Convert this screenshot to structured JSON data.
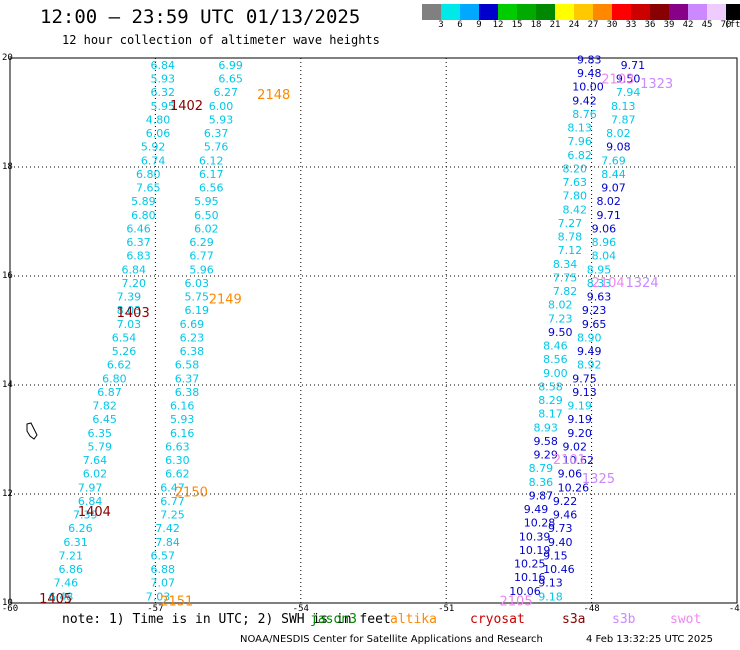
{
  "title": "12:00 – 23:59 UTC 01/13/2025",
  "subtitle": "12 hour collection of altimeter wave heights",
  "scale": {
    "colors": [
      "#808080",
      "#00e8e8",
      "#00a8ff",
      "#0000cc",
      "#00cc00",
      "#00aa00",
      "#008800",
      "#ffff00",
      "#ffc800",
      "#ff8800",
      "#ff0000",
      "#cc0000",
      "#880000",
      "#880088",
      "#cc88ff",
      "#eeccff",
      "#000000"
    ],
    "labels": [
      "3",
      "6",
      "9",
      "12",
      "15",
      "18",
      "21",
      "24",
      "27",
      "30",
      "33",
      "36",
      "39",
      "42",
      "45",
      "70",
      "(ft)"
    ]
  },
  "axes": {
    "x_ticks": [
      "-60",
      "-57",
      "-54",
      "-51",
      "-48",
      "-45"
    ],
    "y_ticks": [
      "20",
      "18",
      "16",
      "14",
      "12",
      "10"
    ]
  },
  "footer": {
    "note": "note: 1) Time is in UTC; 2) SWH is in feet",
    "satellites": [
      {
        "name": "jason3",
        "color": "#008800"
      },
      {
        "name": "altika",
        "color": "#ff8800"
      },
      {
        "name": "cryosat",
        "color": "#cc0000"
      },
      {
        "name": "s3a",
        "color": "#880000"
      },
      {
        "name": "s3b",
        "color": "#cc88ff"
      },
      {
        "name": "swot",
        "color": "#ee88ee"
      }
    ],
    "credit": "NOAA/NESDIS Center for Satellite Applications and Research",
    "timestamp": "4 Feb 13:32:25 UTC 2025"
  },
  "chart_data": {
    "type": "scatter",
    "xlim": [
      -60,
      -45
    ],
    "ylim": [
      10,
      20
    ],
    "grid": true,
    "colors": {
      "c6": "#00c8e8",
      "c9": "#00a8ff",
      "c12": "#0000cc"
    },
    "pass_labels": [
      {
        "text": "1402",
        "x": -56.7,
        "y": 19.05,
        "color": "#880000"
      },
      {
        "text": "2148",
        "x": -54.9,
        "y": 19.25,
        "color": "#ff8800"
      },
      {
        "text": "1403",
        "x": -57.8,
        "y": 15.25,
        "color": "#880000"
      },
      {
        "text": "2149",
        "x": -55.9,
        "y": 15.5,
        "color": "#ff8800"
      },
      {
        "text": "1404",
        "x": -58.6,
        "y": 11.6,
        "color": "#880000"
      },
      {
        "text": "2150",
        "x": -56.6,
        "y": 11.95,
        "color": "#ff8800"
      },
      {
        "text": "1405",
        "x": -59.4,
        "y": 10.0,
        "color": "#880000"
      },
      {
        "text": "2151",
        "x": -56.9,
        "y": 9.95,
        "color": "#ff8800"
      },
      {
        "text": "2103",
        "x": -47.8,
        "y": 19.53,
        "color": "#ee88ee"
      },
      {
        "text": "1323",
        "x": -47.0,
        "y": 19.45,
        "color": "#cc88ff"
      },
      {
        "text": "2104",
        "x": -48.0,
        "y": 15.8,
        "color": "#ee88ee"
      },
      {
        "text": "1324",
        "x": -47.3,
        "y": 15.8,
        "color": "#cc88ff"
      },
      {
        "text": "2101",
        "x": -48.8,
        "y": 12.55,
        "color": "#ee88ee"
      },
      {
        "text": "1325",
        "x": -48.2,
        "y": 12.2,
        "color": "#cc88ff"
      },
      {
        "text": "2105",
        "x": -49.9,
        "y": 9.95,
        "color": "#ee88ee"
      }
    ],
    "tracks": [
      {
        "name": "s3a-left",
        "x": [
          -57.1,
          -57.1,
          -57.1,
          -57.1,
          -57.2,
          -57.2,
          -57.3,
          -57.3,
          -57.4,
          -57.4,
          -57.5,
          -57.5,
          -57.6,
          -57.6,
          -57.6,
          -57.7,
          -57.7,
          -57.8,
          -57.8,
          -57.8,
          -57.9,
          -57.9,
          -58.0,
          -58.1,
          -58.2,
          -58.3,
          -58.3,
          -58.4,
          -58.4,
          -58.5,
          -58.5,
          -58.6,
          -58.6,
          -58.7,
          -58.8,
          -58.9,
          -59.0,
          -59.0,
          -59.1,
          -59.2,
          -59.3,
          -59.4,
          -59.5,
          -59.6
        ],
        "y": [
          19.8,
          19.55,
          19.3,
          19.05,
          18.8,
          18.55,
          18.3,
          18.05,
          17.8,
          17.55,
          17.3,
          17.05,
          16.8,
          16.55,
          16.3,
          16.05,
          15.8,
          15.55,
          15.3,
          15.05,
          14.8,
          14.55,
          14.3,
          14.05,
          13.8,
          13.55,
          13.3,
          13.05,
          12.8,
          12.55,
          12.3,
          12.05,
          11.8,
          11.55,
          11.3,
          11.05,
          10.8,
          10.55,
          10.3,
          10.05,
          9.8,
          9.55,
          9.3,
          9.05
        ],
        "values": [
          "6.84",
          "5.93",
          "6.32",
          "5.95",
          "4.80",
          "6.06",
          "5.92",
          "6.74",
          "6.80",
          "7.65",
          "5.89",
          "6.80",
          "6.46",
          "6.37",
          "6.83",
          "6.84",
          "7.20",
          "7.39",
          "8.03",
          "7.03",
          "6.54",
          "5.26",
          "6.62",
          "6.80",
          "6.87",
          "7.82",
          "6.45",
          "6.35",
          "5.79",
          "7.64",
          "6.02",
          "7.97",
          "6.84",
          "7.39",
          "6.26",
          "6.31",
          "7.21",
          "6.86",
          "7.46",
          "6.48",
          "6.21",
          "6.97",
          "8.31",
          "8.00"
        ],
        "colors": [
          "c6",
          "c6",
          "c6",
          "c6",
          "c6",
          "c6",
          "c6",
          "c6",
          "c6",
          "c6",
          "c6",
          "c6",
          "c6",
          "c6",
          "c6",
          "c6",
          "c6",
          "c6",
          "c6",
          "c6",
          "c6",
          "c6",
          "c6",
          "c6",
          "c6",
          "c6",
          "c6",
          "c6",
          "c6",
          "c6",
          "c6",
          "c6",
          "c6",
          "c6",
          "c6",
          "c6",
          "c6",
          "c6",
          "c6",
          "c6",
          "c6",
          "c6",
          "c6",
          "c9"
        ]
      },
      {
        "name": "altika-left",
        "x": [
          -55.7,
          -55.7,
          -55.8,
          -55.9,
          -55.9,
          -56.0,
          -56.0,
          -56.1,
          -56.1,
          -56.1,
          -56.2,
          -56.2,
          -56.2,
          -56.3,
          -56.3,
          -56.3,
          -56.4,
          -56.4,
          -56.4,
          -56.5,
          -56.5,
          -56.5,
          -56.6,
          -56.6,
          -56.6,
          -56.7,
          -56.7,
          -56.7,
          -56.8,
          -56.8,
          -56.8,
          -56.9,
          -56.9,
          -56.9,
          -57.0,
          -57.0,
          -57.1,
          -57.1,
          -57.1,
          -57.2,
          -57.2,
          -57.2,
          -57.3
        ],
        "y": [
          19.8,
          19.55,
          19.3,
          19.05,
          18.8,
          18.55,
          18.3,
          18.05,
          17.8,
          17.55,
          17.3,
          17.05,
          16.8,
          16.55,
          16.3,
          16.05,
          15.8,
          15.55,
          15.3,
          15.05,
          14.8,
          14.55,
          14.3,
          14.05,
          13.8,
          13.55,
          13.3,
          13.05,
          12.8,
          12.55,
          12.3,
          12.05,
          11.8,
          11.55,
          11.3,
          11.05,
          10.8,
          10.55,
          10.3,
          10.05,
          9.8,
          9.55,
          9.3
        ],
        "values": [
          "6.99",
          "6.65",
          "6.27",
          "6.00",
          "5.93",
          "6.37",
          "5.76",
          "6.12",
          "6.17",
          "6.56",
          "5.95",
          "6.50",
          "6.02",
          "6.29",
          "6.77",
          "5.96",
          "6.03",
          "5.75",
          "6.19",
          "6.69",
          "6.23",
          "6.38",
          "6.58",
          "6.37",
          "6.38",
          "6.16",
          "5.93",
          "6.16",
          "6.63",
          "6.30",
          "6.62",
          "6.47",
          "6.77",
          "7.25",
          "7.42",
          "7.84",
          "6.57",
          "6.88",
          "7.07",
          "7.03",
          "7.00",
          "7.10",
          "7.20"
        ],
        "colors": [
          "c6",
          "c6",
          "c6",
          "c6",
          "c6",
          "c6",
          "c6",
          "c6",
          "c6",
          "c6",
          "c6",
          "c6",
          "c6",
          "c6",
          "c6",
          "c6",
          "c6",
          "c6",
          "c6",
          "c6",
          "c6",
          "c6",
          "c6",
          "c6",
          "c6",
          "c6",
          "c6",
          "c6",
          "c6",
          "c6",
          "c6",
          "c6",
          "c6",
          "c6",
          "c6",
          "c6",
          "c6",
          "c6",
          "c6",
          "c6",
          "c6",
          "c6",
          "c6"
        ]
      },
      {
        "name": "right-inner",
        "x": [
          -48.3,
          -48.3,
          -48.4,
          -48.4,
          -48.4,
          -48.5,
          -48.5,
          -48.5,
          -48.6,
          -48.6,
          -48.6,
          -48.6,
          -48.7,
          -48.7,
          -48.7,
          -48.8,
          -48.8,
          -48.8,
          -48.9,
          -48.9,
          -48.9,
          -49.0,
          -49.0,
          -49.0,
          -49.1,
          -49.1,
          -49.1,
          -49.2,
          -49.2,
          -49.2,
          -49.3,
          -49.3,
          -49.3,
          -49.4,
          -49.4,
          -49.5,
          -49.5,
          -49.6,
          -49.6,
          -49.7,
          -49.7,
          -49.8,
          -49.8,
          -49.9
        ],
        "y": [
          19.9,
          19.65,
          19.4,
          19.15,
          18.9,
          18.65,
          18.4,
          18.15,
          17.9,
          17.65,
          17.4,
          17.15,
          16.9,
          16.65,
          16.4,
          16.15,
          15.9,
          15.65,
          15.4,
          15.15,
          14.9,
          14.65,
          14.4,
          14.15,
          13.9,
          13.65,
          13.4,
          13.15,
          12.9,
          12.65,
          12.4,
          12.15,
          11.9,
          11.65,
          11.4,
          11.15,
          10.9,
          10.65,
          10.4,
          10.15,
          9.9,
          9.65,
          9.4,
          9.2
        ],
        "values": [
          "9.83",
          "9.48",
          "10.00",
          "9.42",
          "8.76",
          "8.13",
          "7.96",
          "6.82",
          "8.20",
          "7.63",
          "7.80",
          "8.42",
          "7.27",
          "8.78",
          "7.12",
          "8.34",
          "7.75",
          "7.82",
          "8.02",
          "7.23",
          "9.50",
          "8.46",
          "8.56",
          "9.00",
          "8.58",
          "8.29",
          "8.17",
          "8.93",
          "9.58",
          "9.29",
          "8.79",
          "8.36",
          "9.87",
          "9.49",
          "10.28",
          "10.39",
          "10.19",
          "10.25",
          "10.16",
          "10.06",
          "10.00",
          "9.90",
          "9.80",
          "9.70"
        ],
        "colors": [
          "c12",
          "c12",
          "c12",
          "c12",
          "c6",
          "c6",
          "c6",
          "c6",
          "c6",
          "c6",
          "c6",
          "c6",
          "c6",
          "c6",
          "c6",
          "c6",
          "c6",
          "c6",
          "c6",
          "c6",
          "c12",
          "c6",
          "c6",
          "c6",
          "c6",
          "c6",
          "c6",
          "c6",
          "c12",
          "c12",
          "c6",
          "c6",
          "c12",
          "c12",
          "c12",
          "c12",
          "c12",
          "c12",
          "c12",
          "c12",
          "c12",
          "c12",
          "c12",
          "c12"
        ]
      },
      {
        "name": "right-outer",
        "x": [
          -47.4,
          -47.5,
          -47.5,
          -47.6,
          -47.6,
          -47.7,
          -47.7,
          -47.8,
          -47.8,
          -47.8,
          -47.9,
          -47.9,
          -48.0,
          -48.0,
          -48.0,
          -48.1,
          -48.1,
          -48.1,
          -48.2,
          -48.2,
          -48.3,
          -48.3,
          -48.3,
          -48.4,
          -48.4,
          -48.5,
          -48.5,
          -48.5,
          -48.6,
          -48.6,
          -48.7,
          -48.7,
          -48.8,
          -48.8,
          -48.9,
          -48.9,
          -49.0,
          -49.0,
          -49.1,
          -49.1,
          -49.2
        ],
        "y": [
          19.8,
          19.55,
          19.3,
          19.05,
          18.8,
          18.55,
          18.3,
          18.05,
          17.8,
          17.55,
          17.3,
          17.05,
          16.8,
          16.55,
          16.3,
          16.05,
          15.8,
          15.55,
          15.3,
          15.05,
          14.8,
          14.55,
          14.3,
          14.05,
          13.8,
          13.55,
          13.3,
          13.05,
          12.8,
          12.55,
          12.3,
          12.05,
          11.8,
          11.55,
          11.3,
          11.05,
          10.8,
          10.55,
          10.3,
          10.05,
          9.8
        ],
        "values": [
          "9.71",
          "9.50",
          "7.94",
          "8.13",
          "7.87",
          "8.02",
          "9.08",
          "7.69",
          "8.44",
          "9.07",
          "8.02",
          "9.71",
          "9.06",
          "8.96",
          "8.04",
          "8.95",
          "8.33",
          "9.63",
          "9.23",
          "9.65",
          "8.90",
          "9.49",
          "8.92",
          "9.75",
          "9.13",
          "9.19",
          "9.19",
          "9.20",
          "9.02",
          "10.62",
          "9.06",
          "10.26",
          "9.22",
          "9.46",
          "9.73",
          "9.40",
          "9.15",
          "10.46",
          "9.13",
          "9.18",
          "9.74"
        ],
        "colors": [
          "c12",
          "c12",
          "c6",
          "c6",
          "c6",
          "c6",
          "c12",
          "c6",
          "c6",
          "c12",
          "c12",
          "c12",
          "c12",
          "c6",
          "c6",
          "c6",
          "c6",
          "c12",
          "c12",
          "c12",
          "c6",
          "c12",
          "c6",
          "c12",
          "c12",
          "c6",
          "c12",
          "c12",
          "c12",
          "c12",
          "c12",
          "c12",
          "c12",
          "c12",
          "c12",
          "c12",
          "c12",
          "c12",
          "c12",
          "c6",
          "c12"
        ]
      }
    ]
  }
}
